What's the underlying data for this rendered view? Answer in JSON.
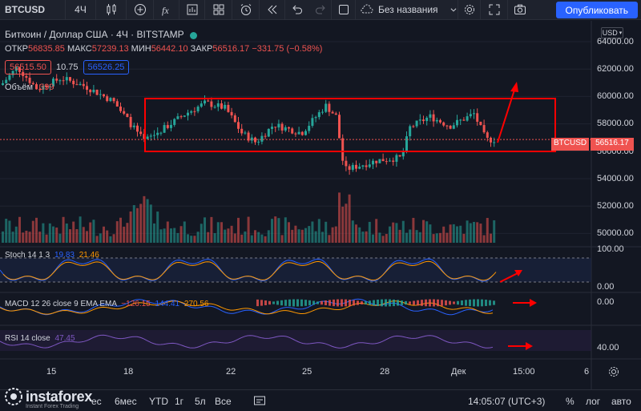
{
  "toolbar": {
    "symbol": "BTCUSD",
    "interval": "4Ч",
    "layout_name": "Без названия",
    "publish_label": "Опубликовать"
  },
  "legend": {
    "title": "Биткоин / Доллар США · 4Ч · BITSTAMP",
    "open_label": "ОТКР",
    "open": "56835.85",
    "high_label": "МАКС",
    "high": "57239.13",
    "low_label": "МИН",
    "low": "56442.10",
    "close_label": "ЗАКР",
    "close": "56516.17",
    "change": "−331.75 (−0.58%)",
    "bid": "56515.50",
    "spread": "10.75",
    "ask": "56526.25",
    "volume_label": "Объём",
    "volume": "399"
  },
  "currency": "USD",
  "price_axis": [
    "64000.00",
    "62000.00",
    "60000.00",
    "58000.00",
    "56000.00",
    "54000.00",
    "52000.00",
    "50000.00"
  ],
  "last_price_tag": {
    "symbol": "BTCUSD",
    "value": "56516.17"
  },
  "indicators": {
    "stoch": {
      "name": "Stoch 14 1 3",
      "k": "19.83",
      "d": "21.46",
      "scale_top": "100.00",
      "scale_bottom": "0.00"
    },
    "macd": {
      "name": "MACD 12 26 close 9 EMA EMA",
      "hist": "−126.15",
      "macd": "144.41",
      "signal": "270.56",
      "scale": "0.00"
    },
    "rsi": {
      "name": "RSI 14 close",
      "value": "47.45",
      "scale": "40.00"
    }
  },
  "time_axis": [
    "15",
    "18",
    "22",
    "25",
    "28",
    "Дек",
    "15:00",
    "6"
  ],
  "bottom_bar": {
    "periods": [
      "ес",
      "6мес",
      "YTD",
      "1г",
      "5л",
      "Все"
    ],
    "time": "14:05:07 (UTC+3)",
    "percent": "%",
    "log": "лог",
    "auto": "авто"
  },
  "watermark": {
    "name": "instaforex",
    "tagline": "Instant Forex Trading"
  },
  "colors": {
    "up": "#26a69a",
    "down": "#ef5350",
    "accent": "#2962ff",
    "annotation": "#ff0000"
  }
}
